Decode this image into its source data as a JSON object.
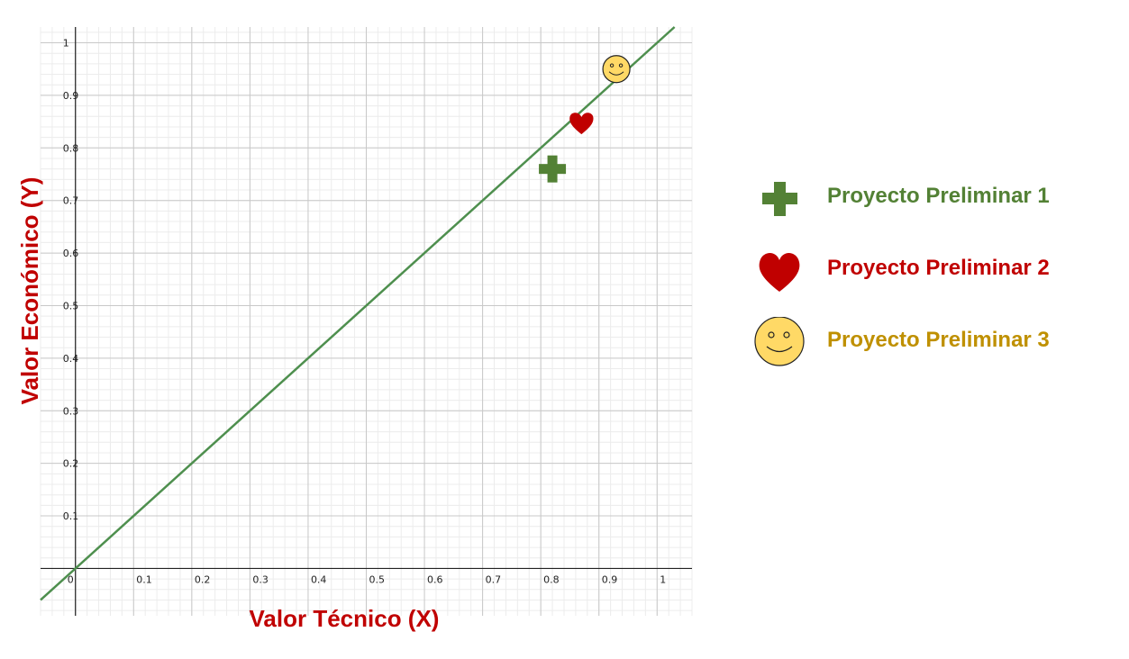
{
  "chart_data": {
    "type": "scatter",
    "xlabel": "Valor Técnico (X)",
    "ylabel": "Valor Económico (Y)",
    "xlim": [
      -0.06,
      1.06
    ],
    "ylim": [
      -0.09,
      1.03
    ],
    "x_ticks": [
      "0",
      "0.1",
      "0.2",
      "0.3",
      "0.4",
      "0.5",
      "0.6",
      "0.7",
      "0.8",
      "0.9",
      "1"
    ],
    "y_ticks": [
      "0.1",
      "0.2",
      "0.3",
      "0.4",
      "0.5",
      "0.6",
      "0.7",
      "0.8",
      "0.9",
      "1"
    ],
    "grid": true,
    "reference_line": {
      "slope": 1,
      "intercept": 0,
      "color": "#4e8f4e"
    },
    "series": [
      {
        "name": "Proyecto Preliminar 1",
        "marker": "plus-icon",
        "color": "#538135",
        "x": 0.82,
        "y": 0.76
      },
      {
        "name": "Proyecto Preliminar 2",
        "marker": "heart-icon",
        "color": "#c00000",
        "x": 0.87,
        "y": 0.85
      },
      {
        "name": "Proyecto Preliminar 3",
        "marker": "smiley-icon",
        "color": "#bf9000",
        "x": 0.93,
        "y": 0.95
      }
    ],
    "legend_position": "right",
    "xlabel_color": "#c00000",
    "ylabel_color": "#c00000"
  }
}
